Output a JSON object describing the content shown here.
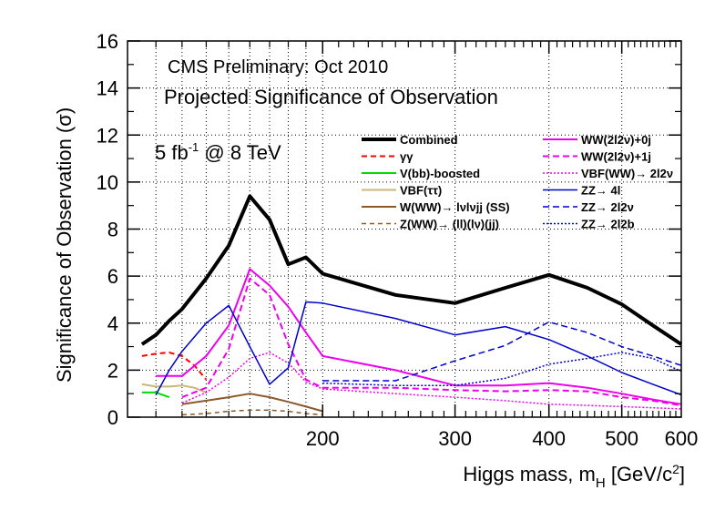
{
  "chart_data": {
    "type": "line",
    "title": "Projected Significance of Observation",
    "subtitle": "CMS Preliminary: Oct 2010",
    "annotation": {
      "main": "5 fb",
      "sup": "-1",
      "rest": " @ 8 TeV"
    },
    "xlabel": {
      "main": "Higgs mass, m",
      "sub": "H",
      "unit_open": " [GeV/c",
      "unit_sup": "2",
      "unit_close": "]"
    },
    "ylabel": "Significance of Observation (σ)",
    "x_scale": "log",
    "xlim": [
      110,
      600
    ],
    "ylim": [
      0,
      16
    ],
    "x_ticks": [
      200,
      300,
      400,
      500,
      600
    ],
    "y_ticks": [
      0,
      2,
      4,
      6,
      8,
      10,
      12,
      14,
      16
    ],
    "grid": "dotted",
    "legend_position": "top-right",
    "series": [
      {
        "name": "Combined",
        "color": "#000000",
        "dash": "solid",
        "width": 4,
        "x": [
          115,
          120,
          125,
          130,
          140,
          150,
          160,
          170,
          180,
          190,
          200,
          250,
          300,
          350,
          400,
          450,
          500,
          550,
          600
        ],
        "y": [
          3.1,
          3.5,
          4.1,
          4.6,
          5.9,
          7.3,
          9.4,
          8.4,
          6.5,
          6.8,
          6.1,
          5.2,
          4.85,
          5.5,
          6.05,
          5.5,
          4.8,
          3.9,
          3.1
        ]
      },
      {
        "name": "γγ",
        "color": "#ff0000",
        "dash": "6,4",
        "width": 2,
        "x": [
          115,
          120,
          125,
          130,
          135,
          140
        ],
        "y": [
          2.6,
          2.7,
          2.75,
          2.6,
          2.2,
          1.6
        ]
      },
      {
        "name": "V(bb)-boosted",
        "color": "#00dd00",
        "dash": "solid",
        "width": 2,
        "x": [
          115,
          120,
          125
        ],
        "y": [
          1.05,
          1.05,
          0.85
        ]
      },
      {
        "name": "VBF(ττ)",
        "color": "#c8b878",
        "dash": "solid",
        "width": 2,
        "x": [
          115,
          120,
          125,
          130,
          135,
          140
        ],
        "y": [
          1.4,
          1.3,
          1.3,
          1.35,
          1.25,
          1.05
        ]
      },
      {
        "name": "W(WW)→ lνlνjj (SS)",
        "color": "#8b5a2b",
        "dash": "solid",
        "width": 2,
        "x": [
          130,
          140,
          150,
          160,
          170,
          180,
          190,
          200
        ],
        "y": [
          0.55,
          0.7,
          0.85,
          1.0,
          0.85,
          0.65,
          0.45,
          0.25
        ]
      },
      {
        "name": "Z(WW)→ (ll)(lν)(jj)",
        "color": "#8b5a2b",
        "dash": "5,4",
        "width": 1.5,
        "x": [
          130,
          140,
          150,
          160,
          170,
          180,
          190,
          200
        ],
        "y": [
          0.1,
          0.15,
          0.25,
          0.3,
          0.3,
          0.25,
          0.15,
          0.1
        ]
      },
      {
        "name": "WW(2l2ν)+0j",
        "color": "#ee00ee",
        "dash": "solid",
        "width": 2,
        "x": [
          120,
          130,
          140,
          150,
          160,
          170,
          180,
          190,
          200,
          250,
          300,
          350,
          400,
          450,
          500,
          550,
          600
        ],
        "y": [
          1.75,
          1.75,
          2.6,
          3.9,
          6.3,
          5.6,
          4.7,
          3.6,
          2.6,
          2.0,
          1.35,
          1.35,
          1.45,
          1.25,
          1.0,
          0.75,
          0.55
        ]
      },
      {
        "name": "WW(2l2ν)+1j",
        "color": "#ee00ee",
        "dash": "7,4",
        "width": 2,
        "x": [
          130,
          140,
          150,
          160,
          170,
          180,
          190,
          200,
          250,
          300,
          350,
          400,
          450,
          500,
          550,
          600
        ],
        "y": [
          0.85,
          1.25,
          2.9,
          5.9,
          5.2,
          3.1,
          1.6,
          1.25,
          1.25,
          1.15,
          1.1,
          1.15,
          1.1,
          0.85,
          0.7,
          0.5
        ]
      },
      {
        "name": "VBF(WW)→ 2l2ν",
        "color": "#ee00ee",
        "dash": "2,2",
        "width": 1.5,
        "x": [
          130,
          140,
          150,
          160,
          170,
          180,
          190,
          200,
          250,
          300,
          350,
          400,
          450,
          500,
          550,
          600
        ],
        "y": [
          0.6,
          1.05,
          1.7,
          2.5,
          2.75,
          2.3,
          1.5,
          1.2,
          1.0,
          0.85,
          0.7,
          0.55,
          0.5,
          0.45,
          0.4,
          0.35
        ]
      },
      {
        "name": "ZZ→ 4l",
        "color": "#0000cc",
        "dash": "solid",
        "width": 1.5,
        "x": [
          120,
          125,
          130,
          140,
          150,
          160,
          170,
          180,
          190,
          200,
          250,
          300,
          350,
          400,
          450,
          500,
          550,
          600
        ],
        "y": [
          0.95,
          2.0,
          2.8,
          4.0,
          4.75,
          3.0,
          1.4,
          2.1,
          4.9,
          4.85,
          4.2,
          3.5,
          3.85,
          3.3,
          2.6,
          1.9,
          1.4,
          0.95
        ]
      },
      {
        "name": "ZZ→ 2l2ν",
        "color": "#0000cc",
        "dash": "7,4",
        "width": 1.5,
        "x": [
          200,
          250,
          300,
          350,
          400,
          450,
          500,
          550,
          600
        ],
        "y": [
          1.55,
          1.55,
          2.4,
          3.05,
          4.05,
          3.6,
          3.0,
          2.6,
          2.2
        ]
      },
      {
        "name": "ZZ→ 2l2b",
        "color": "#0000cc",
        "dash": "2,2",
        "width": 1.5,
        "x": [
          200,
          250,
          300,
          350,
          400,
          450,
          500,
          550,
          600
        ],
        "y": [
          1.45,
          1.35,
          1.35,
          1.65,
          2.25,
          2.5,
          2.75,
          2.5,
          1.95
        ]
      }
    ]
  }
}
